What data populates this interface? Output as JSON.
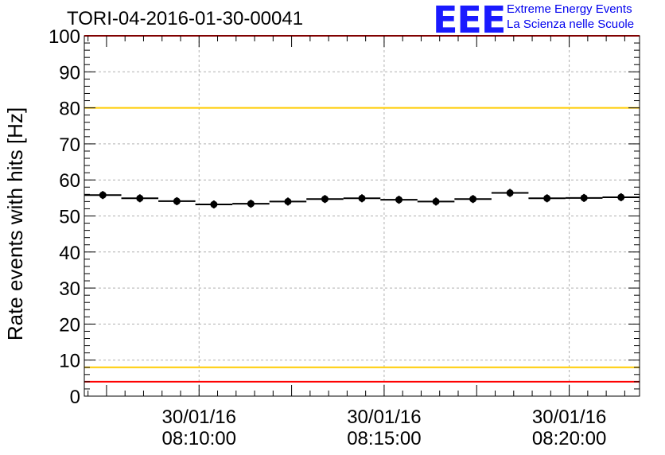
{
  "chart_data": {
    "type": "scatter",
    "title": "TORI-04-2016-01-30-00041",
    "xlabel": "",
    "ylabel": "Rate events with hits [Hz]",
    "ylim": [
      0,
      100
    ],
    "yticks": [
      0,
      10,
      20,
      30,
      40,
      50,
      60,
      70,
      80,
      90,
      100
    ],
    "xlim_minutes": [
      6.9,
      21.9
    ],
    "x_tick_labels": [
      {
        "at_minutes": 10,
        "date": "30/01/16",
        "time": "08:10:00"
      },
      {
        "at_minutes": 15,
        "date": "30/01/16",
        "time": "08:15:00"
      },
      {
        "at_minutes": 20,
        "date": "30/01/16",
        "time": "08:20:00"
      }
    ],
    "grid": true,
    "bin_width_minutes": 1.0,
    "x_minutes": [
      7.4,
      8.4,
      9.4,
      10.4,
      11.4,
      12.4,
      13.4,
      14.4,
      15.4,
      16.4,
      17.4,
      18.4,
      19.4,
      20.4,
      21.4
    ],
    "values": [
      55.8,
      54.9,
      54.1,
      53.2,
      53.4,
      54.0,
      54.7,
      54.9,
      54.5,
      54.0,
      54.7,
      56.4,
      54.9,
      55.0,
      55.2
    ],
    "reference_lines": [
      {
        "value": 100,
        "color": "#ff0000"
      },
      {
        "value": 80,
        "color": "#ffcc00"
      },
      {
        "value": 8,
        "color": "#ffcc00"
      },
      {
        "value": 4,
        "color": "#ff0000"
      }
    ]
  },
  "logo": {
    "mark": "EEE",
    "line1": "Extreme Energy Events",
    "line2": "La Scienza nelle Scuole",
    "color": "#0000ee"
  }
}
